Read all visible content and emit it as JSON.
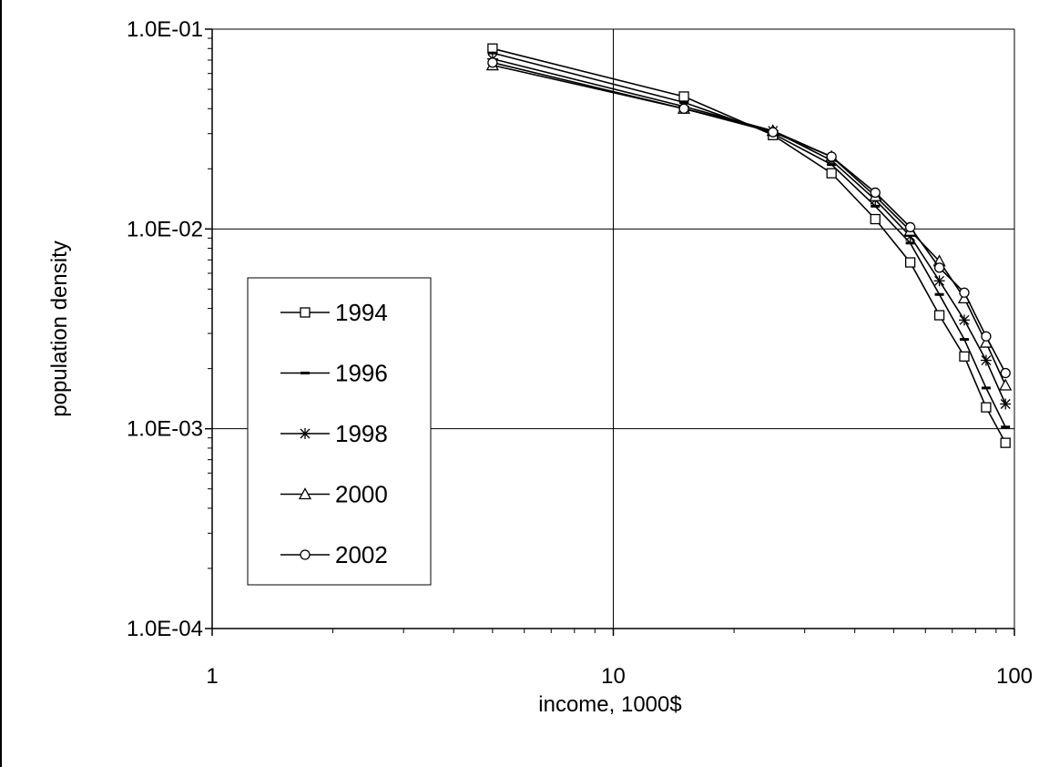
{
  "chart_data": {
    "type": "line",
    "xlabel": "income, 1000$",
    "ylabel": "population density",
    "x_scale": "log",
    "y_scale": "log",
    "xlim": [
      1,
      100
    ],
    "ylim": [
      0.0001,
      0.1
    ],
    "x_ticks": [
      {
        "value": 1,
        "label": "1"
      },
      {
        "value": 10,
        "label": "10"
      },
      {
        "value": 100,
        "label": "100"
      }
    ],
    "y_ticks": [
      {
        "value": 0.0001,
        "label": "1.0E-04"
      },
      {
        "value": 0.001,
        "label": "1.0E-03"
      },
      {
        "value": 0.01,
        "label": "1.0E-02"
      },
      {
        "value": 0.1,
        "label": "1.0E-01"
      }
    ],
    "grid": true,
    "legend_position": "left",
    "x": [
      5,
      15,
      25,
      35,
      45,
      55,
      65,
      75,
      85,
      95
    ],
    "series": [
      {
        "name": "1994",
        "marker": "square",
        "values": [
          0.08,
          0.046,
          0.0295,
          0.019,
          0.0112,
          0.0068,
          0.0037,
          0.0023,
          0.00128,
          0.00085
        ]
      },
      {
        "name": "1996",
        "marker": "dash",
        "values": [
          0.076,
          0.043,
          0.03,
          0.021,
          0.013,
          0.0085,
          0.0047,
          0.0028,
          0.0016,
          0.00102
        ]
      },
      {
        "name": "1998",
        "marker": "star",
        "values": [
          0.071,
          0.041,
          0.031,
          0.022,
          0.014,
          0.0092,
          0.0055,
          0.0035,
          0.0022,
          0.00133
        ]
      },
      {
        "name": "2000",
        "marker": "triangle",
        "values": [
          0.066,
          0.04,
          0.031,
          0.023,
          0.0146,
          0.0098,
          0.0069,
          0.0045,
          0.0027,
          0.00165
        ]
      },
      {
        "name": "2002",
        "marker": "circle",
        "values": [
          0.068,
          0.04,
          0.0305,
          0.023,
          0.0152,
          0.0102,
          0.0064,
          0.0048,
          0.0029,
          0.0019
        ]
      }
    ]
  }
}
